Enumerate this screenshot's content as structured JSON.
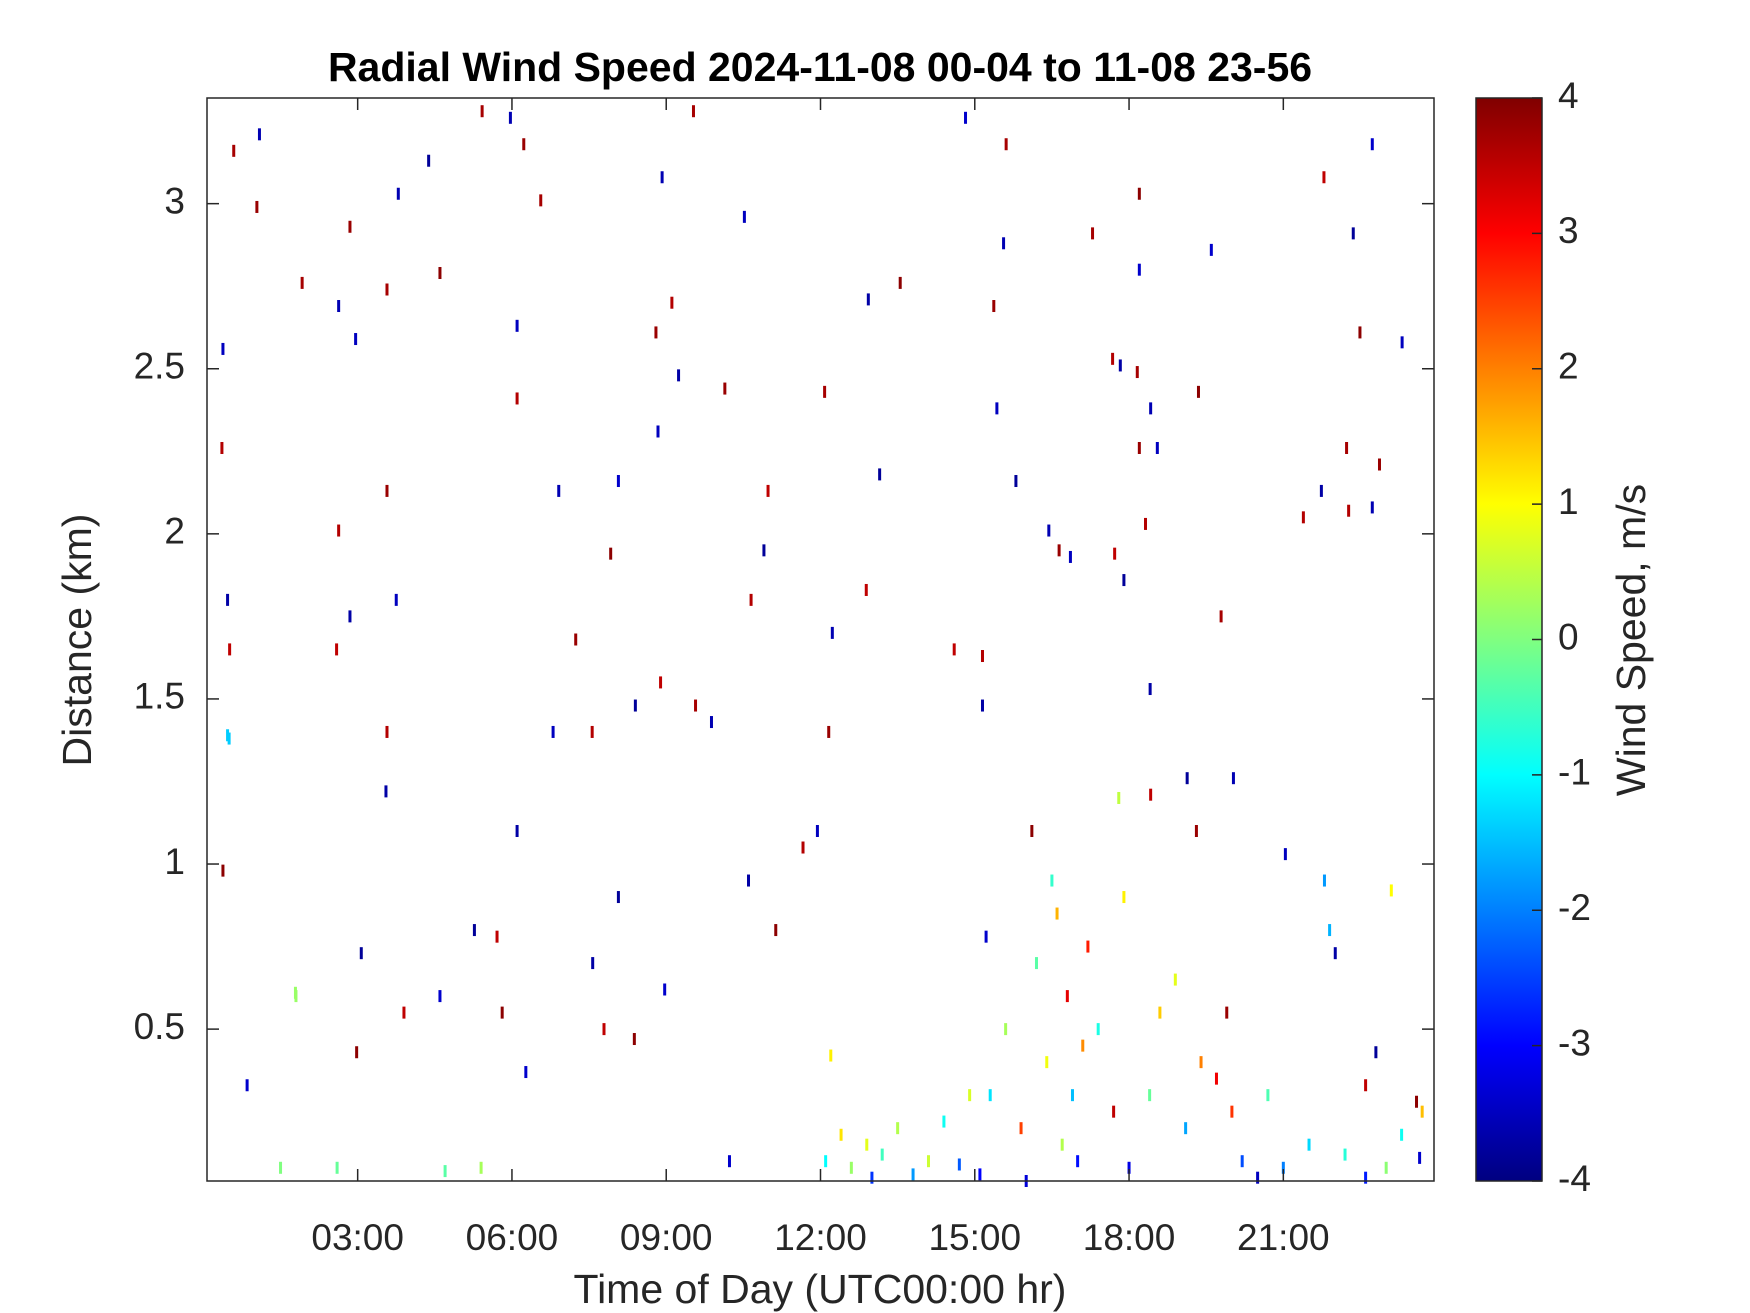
{
  "chart_data": {
    "type": "heatmap-scatter",
    "title": "Radial Wind Speed 2024-11-08 00-04 to 11-08 23-56",
    "x_label": "Time of Day (UTC00:00 hr)",
    "y_label": "Distance (km)",
    "colorbar_label": "Wind Speed, m/s",
    "colormap": "jet",
    "xlim": [
      0.07,
      23.93
    ],
    "xticks": [
      {
        "value": 3,
        "label": "03:00"
      },
      {
        "value": 6,
        "label": "06:00"
      },
      {
        "value": 9,
        "label": "09:00"
      },
      {
        "value": 12,
        "label": "12:00"
      },
      {
        "value": 15,
        "label": "15:00"
      },
      {
        "value": 18,
        "label": "18:00"
      },
      {
        "value": 21,
        "label": "21:00"
      }
    ],
    "ylim": [
      0.04,
      3.32
    ],
    "yticks": [
      0.5,
      1,
      1.5,
      2,
      2.5,
      3
    ],
    "clim": [
      -4,
      4
    ],
    "cticks": [
      -4,
      -3,
      -2,
      -1,
      0,
      1,
      2,
      3,
      4
    ],
    "x": [
      0.59,
      1.09,
      1.04,
      0.38,
      0.36,
      0.47,
      0.51,
      0.47,
      0.38,
      0.85,
      1.92,
      2.63,
      2.85,
      2.96,
      2.63,
      2.85,
      2.59,
      3.07,
      2.98,
      1.79,
      3.57,
      3.79,
      3.57,
      3.75,
      3.57,
      3.55,
      3.9,
      4.38,
      4.6,
      4.6,
      5.42,
      5.97,
      6.23,
      6.1,
      6.1,
      6.1,
      5.71,
      5.27,
      5.81,
      6.27,
      6.56,
      6.91,
      7.24,
      6.8,
      7.56,
      7.57,
      7.79,
      8.07,
      7.92,
      8.07,
      9.53,
      8.92,
      8.8,
      8.84,
      9.11,
      9.24,
      8.89,
      8.4,
      8.38,
      8.97,
      9.57,
      9.88,
      10.14,
      10.52,
      10.65,
      10.6,
      10.98,
      10.9,
      11.13,
      10.23,
      12.08,
      12.23,
      12.16,
      11.94,
      11.66,
      12.93,
      12.89,
      13.15,
      13.55,
      14.82,
      15.61,
      15.56,
      15.37,
      15.43,
      15.15,
      15.15,
      14.6,
      15.8,
      16.11,
      15.22,
      17.29,
      16.44,
      16.64,
      16.86,
      17.68,
      17.83,
      17.72,
      17.9,
      18.2,
      18.2,
      18.16,
      18.42,
      18.2,
      18.55,
      18.32,
      18.41,
      18.42,
      19.13,
      19.35,
      19.6,
      19.79,
      20.03,
      19.31,
      21.04,
      21.39,
      21.74,
      21.79,
      22.36,
      22.49,
      22.73,
      22.23,
      22.73,
      22.87,
      23.31,
      22.27,
      22.01,
      22.6,
      22.8,
      23.59,
      23.65,
      12.6,
      12.9,
      13.2,
      13.5,
      13.8,
      14.1,
      14.4,
      14.7,
      12.4,
      13.0,
      15.3,
      15.6,
      15.9,
      16.2,
      16.4,
      16.6,
      16.8,
      16.9,
      17.0,
      17.2,
      16.5,
      16.7,
      17.1,
      17.4,
      17.8,
      17.9,
      17.7,
      18.0,
      18.4,
      18.6,
      18.9,
      19.1,
      19.4,
      19.7,
      19.9,
      20.0,
      20.2,
      20.5,
      20.7,
      21.0,
      21.5,
      21.9,
      22.2,
      22.6,
      23.0,
      23.3,
      23.7,
      15.1,
      16.0,
      1.5,
      2.6,
      4.7,
      5.4,
      1.8,
      0.5,
      21.8,
      23.1,
      12.2,
      12.1,
      14.9
    ],
    "y": [
      3.16,
      3.21,
      2.99,
      2.56,
      2.26,
      1.8,
      1.65,
      1.39,
      0.98,
      0.33,
      2.76,
      2.69,
      2.93,
      2.59,
      2.01,
      1.75,
      1.65,
      0.73,
      0.43,
      0.61,
      2.74,
      3.03,
      2.13,
      1.8,
      1.4,
      1.22,
      0.55,
      3.13,
      2.79,
      0.6,
      3.28,
      3.26,
      3.18,
      2.63,
      2.41,
      1.1,
      0.78,
      0.8,
      0.55,
      0.37,
      3.01,
      2.13,
      1.68,
      1.4,
      1.4,
      0.7,
      0.5,
      0.9,
      1.94,
      2.16,
      3.28,
      3.08,
      2.61,
      2.31,
      2.7,
      2.48,
      1.55,
      1.48,
      0.47,
      0.62,
      1.48,
      1.43,
      2.44,
      2.96,
      1.8,
      0.95,
      2.13,
      1.95,
      0.8,
      0.1,
      2.43,
      1.7,
      1.4,
      1.1,
      1.05,
      2.71,
      1.83,
      2.18,
      2.76,
      3.26,
      3.18,
      2.88,
      2.69,
      2.38,
      1.63,
      1.48,
      1.65,
      2.16,
      1.1,
      0.78,
      2.91,
      2.01,
      1.95,
      1.93,
      2.53,
      2.51,
      1.94,
      1.86,
      3.03,
      2.8,
      2.49,
      2.38,
      2.26,
      2.26,
      2.03,
      1.53,
      1.21,
      1.26,
      2.43,
      2.86,
      1.75,
      1.26,
      1.1,
      1.03,
      2.05,
      2.13,
      3.08,
      2.91,
      2.61,
      3.18,
      2.26,
      2.08,
      2.21,
      2.58,
      2.07,
      0.73,
      0.33,
      0.43,
      0.28,
      0.11,
      0.08,
      0.15,
      0.12,
      0.2,
      0.06,
      0.1,
      0.22,
      0.09,
      0.18,
      0.05,
      0.3,
      0.5,
      0.2,
      0.7,
      0.4,
      0.85,
      0.6,
      0.3,
      0.1,
      0.75,
      0.95,
      0.15,
      0.45,
      0.5,
      1.2,
      0.9,
      0.25,
      0.08,
      0.3,
      0.55,
      0.65,
      0.2,
      0.4,
      0.35,
      0.55,
      0.25,
      0.1,
      0.05,
      0.3,
      0.08,
      0.15,
      0.8,
      0.12,
      0.05,
      0.08,
      0.18,
      0.25,
      0.06,
      0.04,
      0.08,
      0.08,
      0.07,
      0.08,
      0.6,
      1.38,
      0.95,
      0.92,
      0.42,
      0.1,
      0.3
    ],
    "values": [
      3.7,
      -3.6,
      3.8,
      -3.5,
      3.6,
      -3.7,
      3.5,
      -1.4,
      3.9,
      -3.4,
      3.7,
      -3.6,
      3.8,
      -3.5,
      3.6,
      -3.7,
      3.5,
      -3.8,
      3.9,
      0.2,
      3.7,
      -3.6,
      3.8,
      -3.5,
      3.6,
      -3.7,
      3.5,
      -3.8,
      3.9,
      -3.4,
      3.7,
      -3.6,
      3.8,
      -3.5,
      3.6,
      -3.7,
      3.5,
      -3.8,
      3.9,
      -3.4,
      3.7,
      -3.6,
      3.8,
      -3.5,
      3.6,
      -3.7,
      3.5,
      -3.8,
      3.9,
      -3.4,
      3.7,
      -3.6,
      3.8,
      -3.5,
      3.6,
      -3.7,
      3.5,
      -3.8,
      3.9,
      -3.4,
      3.7,
      -3.6,
      3.8,
      -3.5,
      3.6,
      -3.7,
      3.5,
      -3.8,
      3.9,
      -3.4,
      3.7,
      -3.6,
      3.8,
      -3.5,
      3.6,
      -3.7,
      3.5,
      -3.8,
      3.9,
      -3.4,
      3.7,
      -3.6,
      3.8,
      -3.5,
      3.6,
      -3.7,
      3.5,
      -3.8,
      3.9,
      -3.4,
      3.7,
      -3.6,
      3.8,
      -3.5,
      3.6,
      -3.7,
      3.5,
      -3.8,
      3.9,
      -3.4,
      3.7,
      -3.6,
      3.8,
      -3.5,
      3.6,
      -3.7,
      3.5,
      -3.8,
      3.9,
      -3.4,
      3.7,
      -3.6,
      3.8,
      -3.5,
      3.6,
      -3.7,
      3.5,
      -3.8,
      3.9,
      -3.4,
      3.7,
      -3.6,
      3.8,
      -3.5,
      3.6,
      -3.7,
      3.5,
      -3.8,
      3.9,
      -3.4,
      0.2,
      0.8,
      -0.5,
      0.4,
      -1.8,
      0.6,
      -0.9,
      -2.3,
      1.2,
      -2.6,
      -1.2,
      0.3,
      2.5,
      -0.3,
      0.9,
      1.6,
      3.2,
      -1.5,
      -2.9,
      2.8,
      -0.6,
      0.4,
      1.9,
      -0.8,
      0.5,
      1.1,
      3.5,
      -3.2,
      -0.2,
      1.4,
      0.8,
      -1.7,
      2.0,
      3.1,
      3.8,
      2.6,
      -2.4,
      -3.5,
      -0.4,
      -2.0,
      -1.3,
      -1.6,
      -0.7,
      -2.8,
      0.1,
      -0.9,
      1.5,
      -3.0,
      -3.3,
      0.0,
      -0.2,
      -0.3,
      0.3,
      0.2,
      -1.4,
      -1.8,
      1.0,
      1.1,
      -1.0,
      0.7
    ]
  }
}
